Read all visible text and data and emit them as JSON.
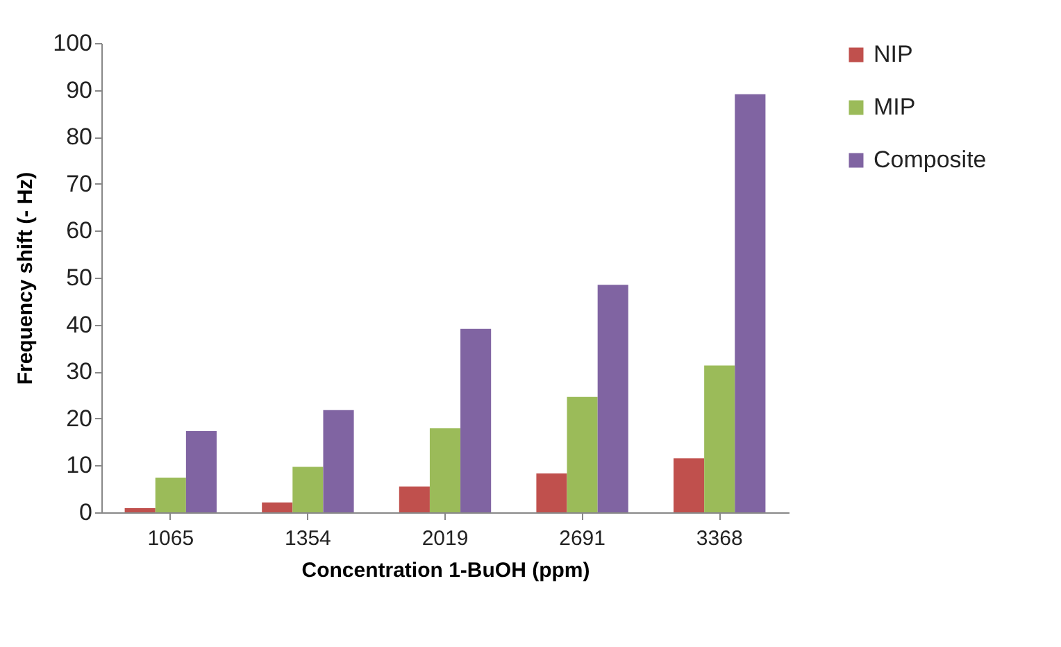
{
  "chart_data": {
    "type": "bar",
    "xlabel": "Concentration 1-BuOH (ppm)",
    "ylabel": "Frequency shift (- Hz)",
    "categories": [
      "1065",
      "1354",
      "2019",
      "2691",
      "3368"
    ],
    "series": [
      {
        "name": "NIP",
        "color": "#c0504d",
        "values": [
          0.9,
          2.1,
          5.5,
          8.3,
          11.5
        ]
      },
      {
        "name": "MIP",
        "color": "#9bbb59",
        "values": [
          7.4,
          9.7,
          17.9,
          24.6,
          31.3
        ]
      },
      {
        "name": "Composite",
        "color": "#8064a2",
        "values": [
          17.3,
          21.8,
          39.1,
          48.5,
          89.1
        ]
      }
    ],
    "ylim": [
      0,
      100
    ],
    "yticks": [
      0,
      10,
      20,
      30,
      40,
      50,
      60,
      70,
      80,
      90,
      100
    ],
    "grid": false,
    "legend": "right"
  }
}
